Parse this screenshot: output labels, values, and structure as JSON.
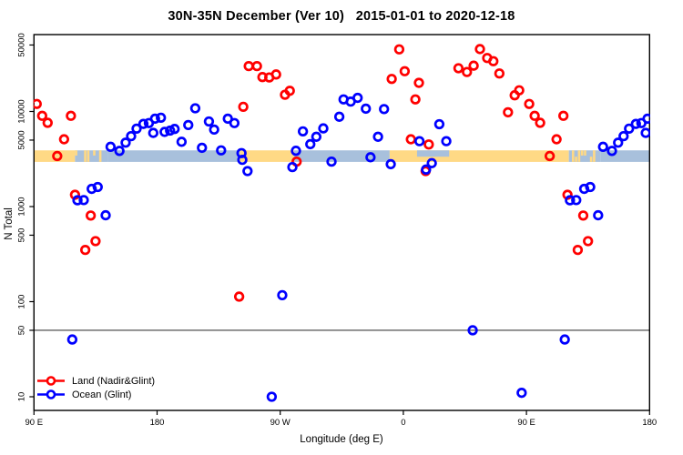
{
  "chart_data": {
    "type": "scatter",
    "title": "30N-35N December (Ver 10)   2015-01-01 to 2020-12-18",
    "xlabel": "Longitude (deg E)",
    "ylabel": "N Total",
    "x_axis": {
      "range_deg": [
        90,
        540
      ],
      "note": "axis spans 450 deg; longitudes 90E-180E are plotted twice (at u and u+360); lon<90E plotted at lon+360",
      "ticks": [
        {
          "u": 90,
          "label": "90 E"
        },
        {
          "u": 180,
          "label": "180"
        },
        {
          "u": 270,
          "label": "90 W"
        },
        {
          "u": 360,
          "label": "0"
        },
        {
          "u": 450,
          "label": "90 E"
        },
        {
          "u": 540,
          "label": "180"
        }
      ]
    },
    "y_axis": {
      "scale": "log10",
      "range": [
        6.5,
        65000
      ],
      "ticks": [
        {
          "n": 10,
          "label": "10"
        },
        {
          "n": 50,
          "label": "50"
        },
        {
          "n": 100,
          "label": "100"
        },
        {
          "n": 500,
          "label": "500"
        },
        {
          "n": 1000,
          "label": "1000"
        },
        {
          "n": 5000,
          "label": "5000"
        },
        {
          "n": 10000,
          "label": "10000"
        },
        {
          "n": 50000,
          "label": "50000"
        }
      ]
    },
    "reference_line": {
      "n": 50,
      "color": "#3f3f3f"
    },
    "surface_band": {
      "description": "land/ocean strip along 30N-35N drawn as horizontal band",
      "n_top": 3900,
      "n_bottom": 2950,
      "land_color": "#FFD985",
      "ocean_color": "#A8C0DC",
      "segments": [
        {
          "from": 90,
          "to": 120,
          "type": "land"
        },
        {
          "from": 120,
          "to": 144,
          "type": "mixed"
        },
        {
          "from": 144,
          "to": 240.5,
          "type": "ocean"
        },
        {
          "from": 240.5,
          "to": 280,
          "type": "land"
        },
        {
          "from": 280,
          "to": 350,
          "type": "ocean"
        },
        {
          "from": 350,
          "to": 481,
          "type": "land"
        },
        {
          "from": 481,
          "to": 504,
          "type": "mixed"
        },
        {
          "from": 504,
          "to": 540,
          "type": "ocean"
        }
      ],
      "notches": [
        {
          "from": 370,
          "to": 393.5,
          "type": "ocean",
          "part": "top-half",
          "note": "Mediterranean"
        }
      ]
    },
    "series": [
      {
        "name": "Land (Nadir&Glint)",
        "color": "#FF0000",
        "points": [
          {
            "lon": 92,
            "n": 12000
          },
          {
            "lon": 96,
            "n": 9000
          },
          {
            "lon": 100,
            "n": 7600
          },
          {
            "lon": 107,
            "n": 3400
          },
          {
            "lon": 112,
            "n": 5100
          },
          {
            "lon": 117,
            "n": 9000
          },
          {
            "lon": 120,
            "n": 1330
          },
          {
            "lon": 131.5,
            "n": 805
          },
          {
            "lon": 135,
            "n": 433
          },
          {
            "lon": 127.5,
            "n": 350
          },
          {
            "lon": 243,
            "n": 11200
          },
          {
            "lon": 247,
            "n": 30000
          },
          {
            "lon": 253,
            "n": 30000
          },
          {
            "lon": 257,
            "n": 23000
          },
          {
            "lon": 262,
            "n": 22800
          },
          {
            "lon": 267,
            "n": 24500
          },
          {
            "lon": 273.5,
            "n": 15000
          },
          {
            "lon": 277,
            "n": 16500
          },
          {
            "lon": 282,
            "n": 2970
          },
          {
            "lon": 240,
            "n": 113
          },
          {
            "lon": 351.5,
            "n": 22000
          },
          {
            "lon": 357,
            "n": 45000
          },
          {
            "lon": 1,
            "n": 26500
          },
          {
            "lon": 5.5,
            "n": 5100
          },
          {
            "lon": 8.8,
            "n": 13400
          },
          {
            "lon": 11.4,
            "n": 20000
          },
          {
            "lon": 16.3,
            "n": 2360
          },
          {
            "lon": 18.6,
            "n": 4500
          },
          {
            "lon": 40.3,
            "n": 28500
          },
          {
            "lon": 46.5,
            "n": 26000
          },
          {
            "lon": 51.4,
            "n": 30300
          },
          {
            "lon": 56,
            "n": 45300
          },
          {
            "lon": 61.3,
            "n": 36500
          },
          {
            "lon": 65.8,
            "n": 33800
          },
          {
            "lon": 70.2,
            "n": 25100
          },
          {
            "lon": 76.5,
            "n": 9800
          },
          {
            "lon": 81.4,
            "n": 14800
          },
          {
            "lon": 84.7,
            "n": 16700
          }
        ]
      },
      {
        "name": "Ocean (Glint)",
        "color": "#0000FF",
        "points": [
          {
            "lon": 121.8,
            "n": 1165
          },
          {
            "lon": 126.4,
            "n": 1170
          },
          {
            "lon": 132.2,
            "n": 1535
          },
          {
            "lon": 136.6,
            "n": 1605
          },
          {
            "lon": 142.4,
            "n": 810
          },
          {
            "lon": 146,
            "n": 4250
          },
          {
            "lon": 152.5,
            "n": 3850
          },
          {
            "lon": 157,
            "n": 4700
          },
          {
            "lon": 161,
            "n": 5500
          },
          {
            "lon": 165,
            "n": 6600
          },
          {
            "lon": 170,
            "n": 7400
          },
          {
            "lon": 174,
            "n": 7550
          },
          {
            "lon": 177.2,
            "n": 5950
          },
          {
            "lon": 178.5,
            "n": 8400
          },
          {
            "lon": 182.8,
            "n": 8600
          },
          {
            "lon": 185.5,
            "n": 6100
          },
          {
            "lon": 189.5,
            "n": 6300
          },
          {
            "lon": 192.8,
            "n": 6550
          },
          {
            "lon": 197.9,
            "n": 4800
          },
          {
            "lon": 202.8,
            "n": 7200
          },
          {
            "lon": 207.9,
            "n": 10800
          },
          {
            "lon": 212.8,
            "n": 4150
          },
          {
            "lon": 217.9,
            "n": 7850
          },
          {
            "lon": 221.7,
            "n": 6450
          },
          {
            "lon": 226.8,
            "n": 3900
          },
          {
            "lon": 231.7,
            "n": 8400
          },
          {
            "lon": 236.5,
            "n": 7550
          },
          {
            "lon": 241.7,
            "n": 3650
          },
          {
            "lon": 242.3,
            "n": 3100
          },
          {
            "lon": 246.1,
            "n": 2360
          },
          {
            "lon": 278.9,
            "n": 2600
          },
          {
            "lon": 281.5,
            "n": 3860
          },
          {
            "lon": 286.6,
            "n": 6180
          },
          {
            "lon": 292,
            "n": 4530
          },
          {
            "lon": 296.4,
            "n": 5420
          },
          {
            "lon": 301.5,
            "n": 6640
          },
          {
            "lon": 307.5,
            "n": 2970
          },
          {
            "lon": 313.2,
            "n": 8800
          },
          {
            "lon": 316.3,
            "n": 13400
          },
          {
            "lon": 321.5,
            "n": 12700
          },
          {
            "lon": 326.6,
            "n": 13900
          },
          {
            "lon": 332.6,
            "n": 10700
          },
          {
            "lon": 336,
            "n": 3300
          },
          {
            "lon": 341.5,
            "n": 5420
          },
          {
            "lon": 345.9,
            "n": 10600
          },
          {
            "lon": 350.8,
            "n": 2790
          },
          {
            "lon": 11.8,
            "n": 4870
          },
          {
            "lon": 16.6,
            "n": 2450
          },
          {
            "lon": 20.8,
            "n": 2860
          },
          {
            "lon": 26.3,
            "n": 7350
          },
          {
            "lon": 31.4,
            "n": 4870
          },
          {
            "lon": 271.5,
            "n": 117
          },
          {
            "lon": 263.8,
            "n": 10
          },
          {
            "lon": 118,
            "n": 40
          },
          {
            "lon": 50.7,
            "n": 50
          },
          {
            "lon": 86.5,
            "n": 11
          }
        ]
      }
    ]
  },
  "legend": {
    "items": [
      {
        "label": "Land (Nadir&Glint)",
        "color": "#FF0000"
      },
      {
        "label": "Ocean (Glint)",
        "color": "#0000FF"
      }
    ]
  }
}
